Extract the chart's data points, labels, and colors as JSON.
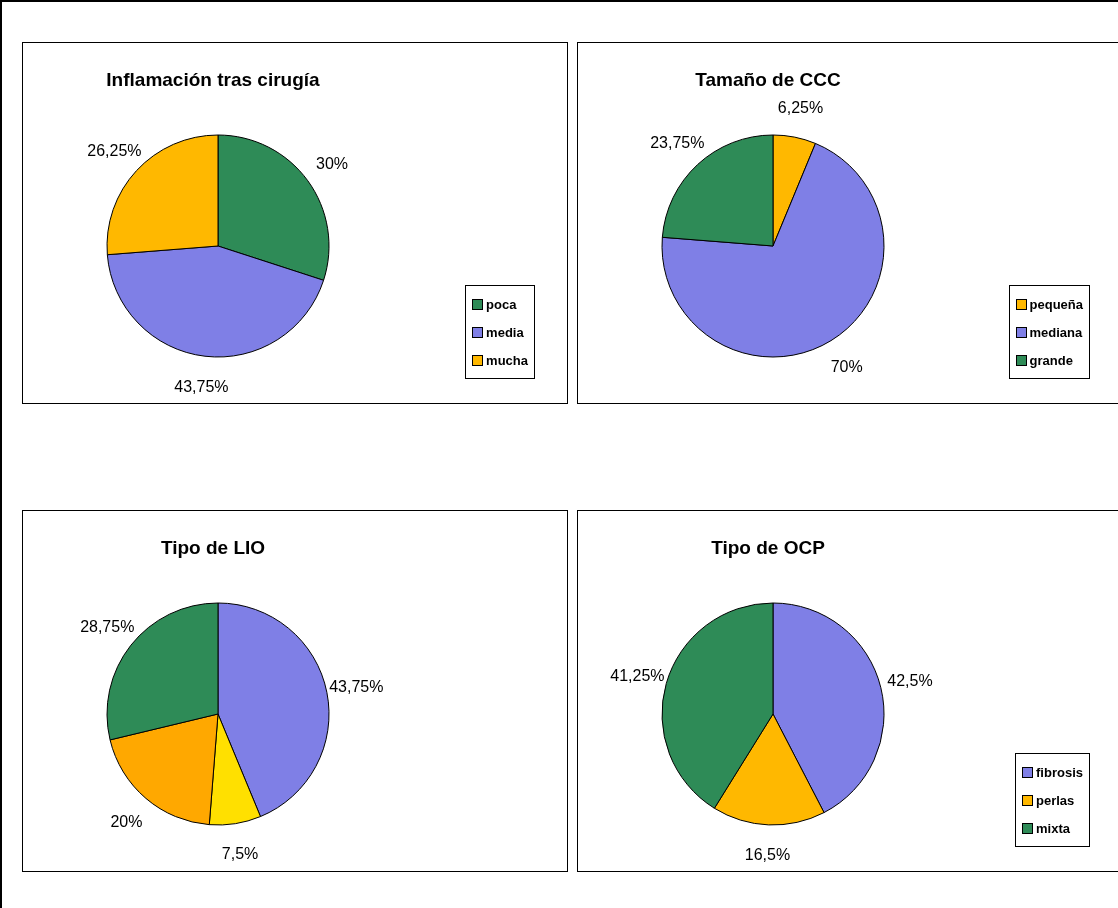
{
  "chart_data": [
    {
      "type": "pie",
      "title": "Inflamación tras cirugía",
      "categories": [
        "poca",
        "media",
        "mucha"
      ],
      "values": [
        30,
        43.75,
        26.25
      ],
      "colors": [
        "#2e8b57",
        "#7f7fe6",
        "#ffb800"
      ],
      "value_labels": [
        "30%",
        "43,75%",
        "26,25%"
      ],
      "legend": "bottom right"
    },
    {
      "type": "pie",
      "title": "Tamaño de CCC",
      "categories": [
        "pequeña",
        "mediana",
        "grande"
      ],
      "values": [
        6.25,
        70,
        23.75
      ],
      "colors": [
        "#ffb800",
        "#7f7fe6",
        "#2e8b57"
      ],
      "value_labels": [
        "6,25%",
        "70%",
        "23,75%"
      ],
      "legend": "bottom right"
    },
    {
      "type": "pie",
      "title": "Tipo de LIO",
      "categories": [
        null,
        null,
        null,
        null
      ],
      "values": [
        43.75,
        7.5,
        20,
        28.75
      ],
      "colors": [
        "#7f7fe6",
        "#ffe000",
        "#ffa800",
        "#2e8b57"
      ],
      "value_labels": [
        "43,75%",
        "7,5%",
        "20%",
        "28,75%"
      ]
    },
    {
      "type": "pie",
      "title": "Tipo de OCP",
      "categories": [
        "fibrosis",
        "perlas",
        "mixta"
      ],
      "values": [
        42.5,
        16.5,
        41.25
      ],
      "colors": [
        "#7f7fe6",
        "#ffb800",
        "#2e8b57"
      ],
      "value_labels": [
        "42,5%",
        "16,5%",
        "41,25%"
      ],
      "legend": "bottom right"
    }
  ]
}
